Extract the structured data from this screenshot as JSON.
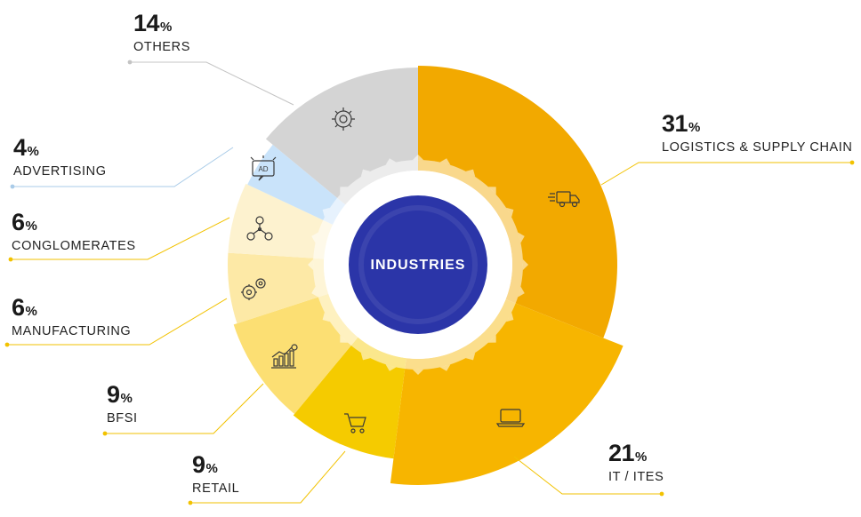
{
  "chart_data": {
    "type": "pie",
    "center_label": "INDUSTRIES",
    "slices": [
      {
        "label": "LOGISTICS & SUPPLY CHAIN",
        "value": 31,
        "color": "#f2a900",
        "icon": "truck-icon"
      },
      {
        "label": "IT / ITES",
        "value": 21,
        "color": "#f7b500",
        "icon": "laptop-icon"
      },
      {
        "label": "RETAIL",
        "value": 9,
        "color": "#f5cb00",
        "icon": "shopping-cart-icon"
      },
      {
        "label": "BFSI",
        "value": 9,
        "color": "#fcdf73",
        "icon": "bar-chart-growth-icon"
      },
      {
        "label": "MANUFACTURING",
        "value": 6,
        "color": "#fde9a6",
        "icon": "gears-icon"
      },
      {
        "label": "CONGLOMERATES",
        "value": 6,
        "color": "#fdf2cf",
        "icon": "network-people-icon"
      },
      {
        "label": "ADVERTISING",
        "value": 4,
        "color": "#c9e3fa",
        "icon": "ad-billboard-icon"
      },
      {
        "label": "OTHERS",
        "value": 14,
        "color": "#d4d4d4",
        "icon": "gear-icon"
      }
    ],
    "unit_symbol": "%",
    "center_color": "#2b35a8",
    "leader_colors": {
      "yellow": "#f2c200",
      "blue": "#a9cbe8",
      "gray": "#c4c4c4"
    }
  }
}
